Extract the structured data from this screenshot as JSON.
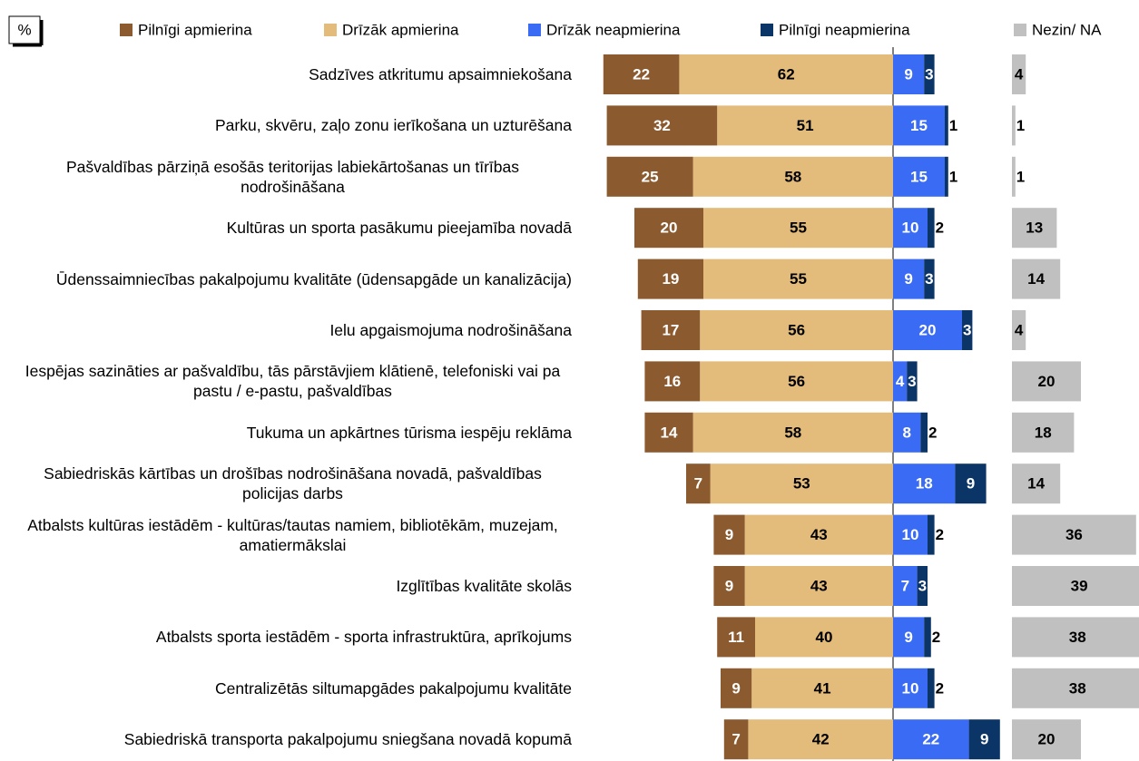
{
  "chart_data": {
    "type": "diverging_bar",
    "unit_label": "%",
    "categories": [
      "Sadzīves atkritumu apsaimniekošana",
      "Parku, skvēru, zaļo zonu ierīkošana un uzturēšana",
      "Pašvaldības pārziņā esošās teritorijas labiekārtošanas un tīrības nodrošināšana",
      "Kultūras un sporta pasākumu pieejamība novadā",
      "Ūdenssaimniecības pakalpojumu kvalitāte (ūdensapgāde un kanalizācija)",
      "Ielu apgaismojuma nodrošināšana",
      "Iespējas sazināties ar pašvaldību, tās pārstāvjiem klātienē, telefoniski vai pa pastu / e-pastu, pašvaldības",
      "Tukuma un apkārtnes tūrisma iespēju reklāma",
      "Sabiedriskās kārtības un drošības nodrošināšana novadā, pašvaldības policijas darbs",
      "Atbalsts kultūras iestādēm - kultūras/tautas namiem, bibliotēkām, muzejam, amatiermākslai",
      "Izglītības kvalitāte skolās",
      "Atbalsts sporta iestādēm - sporta infrastruktūra, aprīkojums",
      "Centralizētās siltumapgādes pakalpojumu kvalitāte",
      "Sabiedriskā transporta pakalpojumu sniegšana novadā kopumā"
    ],
    "series": [
      {
        "name": "Pilnīgi apmierina",
        "color": "#8b5a2f",
        "side": "left",
        "values": [
          22,
          32,
          25,
          20,
          19,
          17,
          16,
          14,
          7,
          9,
          9,
          11,
          9,
          7
        ]
      },
      {
        "name": "Drīzāk apmierina",
        "color": "#e3bb7b",
        "side": "left",
        "values": [
          62,
          51,
          58,
          55,
          55,
          56,
          56,
          58,
          53,
          43,
          43,
          40,
          41,
          42
        ]
      },
      {
        "name": "Drīzāk neapmierina",
        "color": "#3a6bf5",
        "side": "right",
        "values": [
          9,
          15,
          15,
          10,
          9,
          20,
          4,
          8,
          18,
          10,
          7,
          9,
          10,
          22
        ]
      },
      {
        "name": "Pilnīgi neapmierina",
        "color": "#0c3567",
        "side": "right",
        "values": [
          3,
          1,
          1,
          2,
          3,
          3,
          3,
          2,
          9,
          2,
          3,
          2,
          2,
          9
        ]
      },
      {
        "name": "Nezin/ NA",
        "color": "#c0c0c0",
        "side": "extra",
        "values": [
          4,
          1,
          1,
          13,
          14,
          4,
          20,
          18,
          14,
          36,
          39,
          38,
          38,
          20
        ]
      }
    ]
  }
}
